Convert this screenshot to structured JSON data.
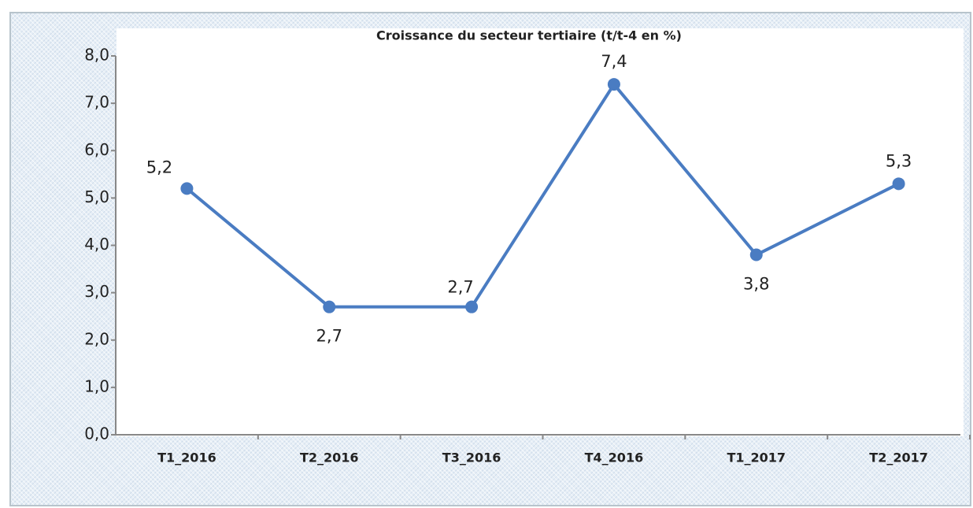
{
  "chart_data": {
    "type": "line",
    "title": "Croissance du secteur tertiaire (t/t-4 en %)",
    "categories": [
      "T1_2016",
      "T2_2016",
      "T3_2016",
      "T4_2016",
      "T1_2017",
      "T2_2017"
    ],
    "series": [
      {
        "name": null,
        "color": "#4a7cc2",
        "values": [
          5.2,
          2.7,
          2.7,
          7.4,
          3.8,
          5.3
        ],
        "value_labels": [
          "5,2",
          "2,7",
          "2,7",
          "7,4",
          "3,8",
          "5,3"
        ]
      }
    ],
    "ylim": [
      0,
      8
    ],
    "yticks": [
      {
        "value": 0,
        "label": "0,0"
      },
      {
        "value": 1,
        "label": "1,0"
      },
      {
        "value": 2,
        "label": "2,0"
      },
      {
        "value": 3,
        "label": "3,0"
      },
      {
        "value": 4,
        "label": "4,0"
      },
      {
        "value": 5,
        "label": "5,0"
      },
      {
        "value": 6,
        "label": "6,0"
      },
      {
        "value": 7,
        "label": "7,0"
      },
      {
        "value": 8,
        "label": "8,0"
      }
    ],
    "grid": false
  }
}
